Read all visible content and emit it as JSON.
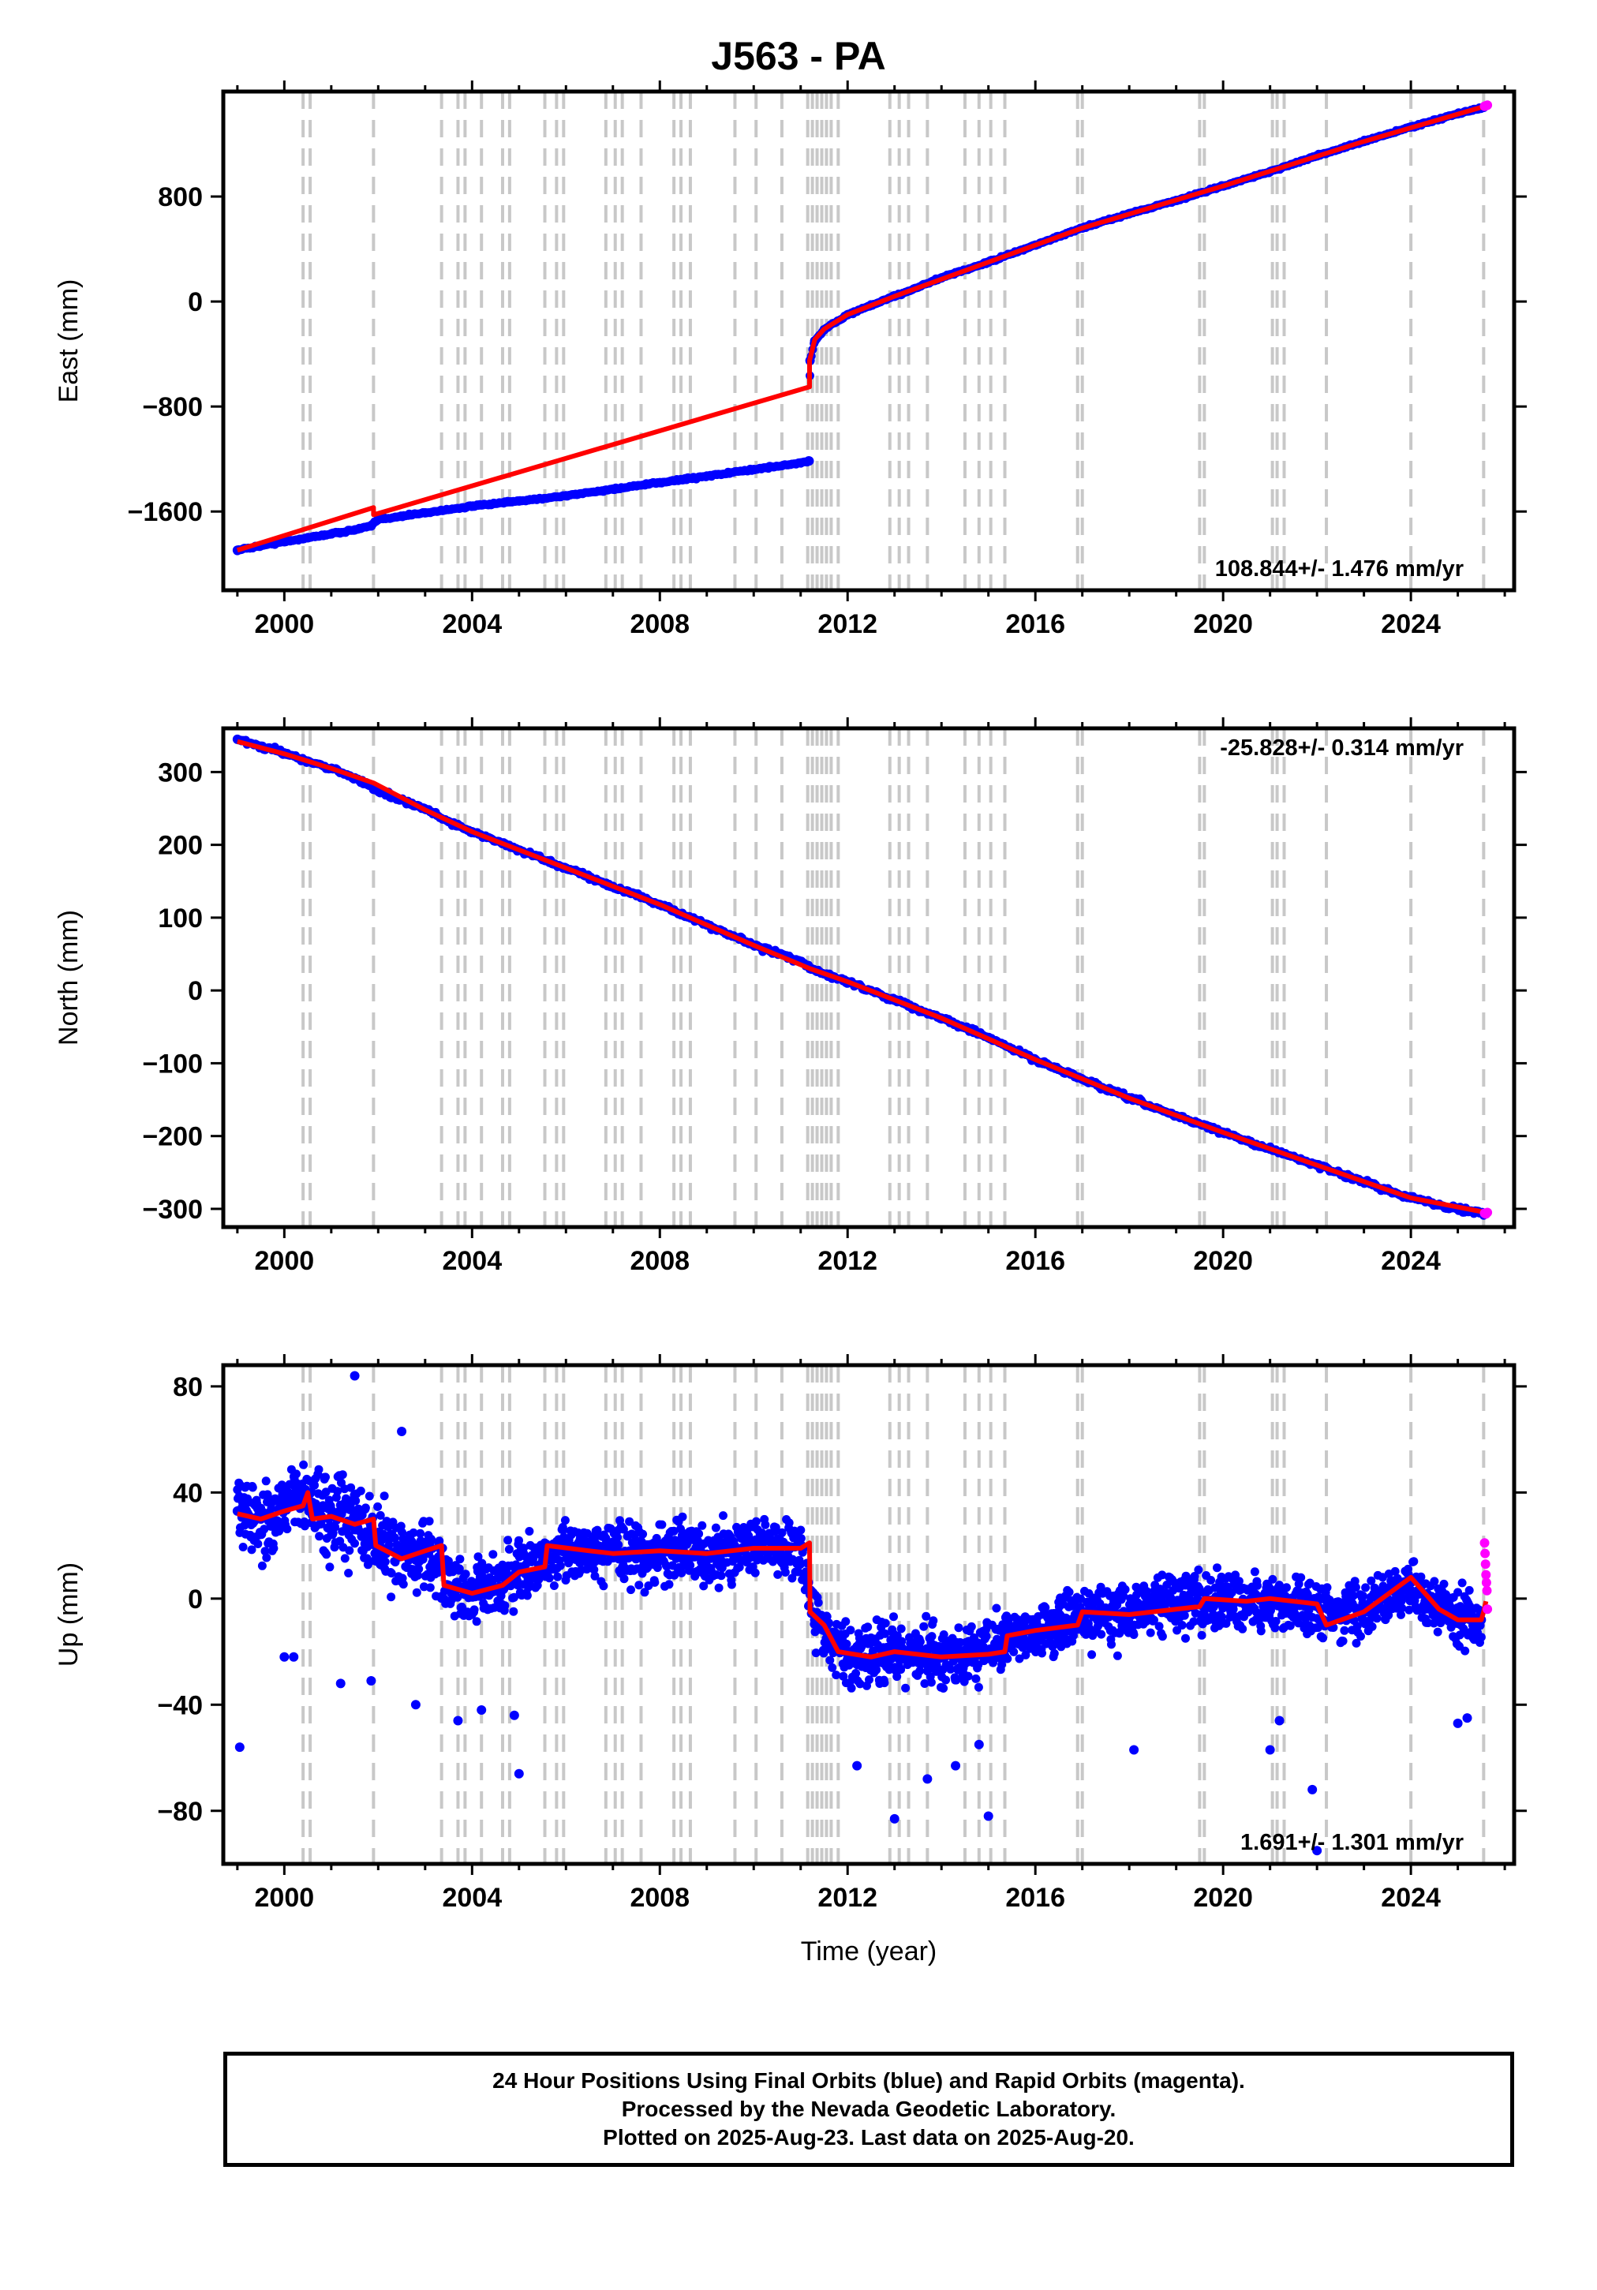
{
  "title": "J563 - PA",
  "footer": {
    "line1": "24 Hour Positions Using Final Orbits (blue) and Rapid Orbits (magenta).",
    "line2": "Processed by the Nevada Geodetic Laboratory.",
    "line3": "Plotted on 2025-Aug-23. Last data on 2025-Aug-20."
  },
  "colors": {
    "final_orbits": "#0000ff",
    "rapid_orbits": "#ff00ff",
    "model_fit": "#ff0000",
    "event_lines": "#c8c8c8",
    "frame": "#000000"
  },
  "chart_data": [
    {
      "type": "scatter",
      "panel": "east",
      "title": "",
      "xlabel": "",
      "ylabel": "East (mm)",
      "xlim": [
        1998.7,
        2026.2
      ],
      "ylim": [
        -2200,
        1600
      ],
      "xticks": [
        2000,
        2004,
        2008,
        2012,
        2016,
        2020,
        2024
      ],
      "yticks": [
        -1600,
        -800,
        0,
        800
      ],
      "velocity_label": "108.844+/- 1.476 mm/yr",
      "velocity_label_position": "bottom-right",
      "grid": false,
      "event_lines": [
        2000.4,
        2000.55,
        2001.9,
        2003.35,
        2003.7,
        2003.85,
        2004.2,
        2004.65,
        2004.8,
        2005.55,
        2005.8,
        2005.95,
        2006.85,
        2007.05,
        2007.2,
        2007.6,
        2008.3,
        2008.45,
        2008.65,
        2009.6,
        2010.05,
        2010.6,
        2011.15,
        2011.25,
        2011.35,
        2011.45,
        2011.55,
        2011.65,
        2011.8,
        2012.9,
        2013.1,
        2013.3,
        2013.7,
        2014.5,
        2014.8,
        2015.05,
        2015.35,
        2016.9,
        2017.0,
        2019.5,
        2019.6,
        2021.05,
        2021.15,
        2021.3,
        2022.2,
        2024.0,
        2025.55
      ],
      "model_fit": {
        "x": [
          1999.0,
          2001.9,
          2001.9,
          2011.19,
          2011.19,
          2011.3,
          2011.5,
          2012.0,
          2013.0,
          2015.0,
          2017.0,
          2020.0,
          2023.0,
          2025.6
        ],
        "y": [
          -1895,
          -1570,
          -1625,
          -650,
          -450,
          -290,
          -210,
          -100,
          40,
          300,
          560,
          880,
          1220,
          1490
        ]
      },
      "final_orbits": {
        "x": [
          1999.0,
          1999.5,
          2000.0,
          2000.5,
          2001.0,
          2001.5,
          2001.85,
          2002.0,
          2003.0,
          2004.0,
          2005.0,
          2006.0,
          2007.0,
          2008.0,
          2009.0,
          2010.0,
          2011.0,
          2011.18,
          2011.2,
          2011.3,
          2011.5,
          2012.0,
          2013.0,
          2014.0,
          2015.0,
          2016.0,
          2017.0,
          2018.0,
          2019.0,
          2020.0,
          2021.0,
          2022.0,
          2023.0,
          2024.0,
          2025.0,
          2025.55
        ],
        "y": [
          -1895,
          -1860,
          -1830,
          -1800,
          -1770,
          -1740,
          -1710,
          -1660,
          -1610,
          -1560,
          -1520,
          -1480,
          -1430,
          -1380,
          -1330,
          -1280,
          -1230,
          -1215,
          -450,
          -300,
          -215,
          -100,
          40,
          180,
          300,
          430,
          560,
          670,
          770,
          880,
          990,
          1110,
          1220,
          1330,
          1430,
          1480
        ]
      },
      "rapid_orbits": {
        "x": [
          2025.57,
          2025.6,
          2025.63
        ],
        "y": [
          1488,
          1492,
          1496
        ]
      }
    },
    {
      "type": "scatter",
      "panel": "north",
      "title": "",
      "xlabel": "",
      "ylabel": "North (mm)",
      "xlim": [
        1998.7,
        2026.2
      ],
      "ylim": [
        -325,
        360
      ],
      "xticks": [
        2000,
        2004,
        2008,
        2012,
        2016,
        2020,
        2024
      ],
      "yticks": [
        -300,
        -200,
        -100,
        0,
        100,
        200,
        300
      ],
      "velocity_label": "-25.828+/- 0.314 mm/yr",
      "velocity_label_position": "top-right",
      "grid": false,
      "event_lines": [
        2000.4,
        2000.55,
        2001.9,
        2003.35,
        2003.7,
        2003.85,
        2004.2,
        2004.65,
        2004.8,
        2005.55,
        2005.8,
        2005.95,
        2006.85,
        2007.05,
        2007.2,
        2007.6,
        2008.3,
        2008.45,
        2008.65,
        2009.6,
        2010.05,
        2010.6,
        2011.15,
        2011.25,
        2011.35,
        2011.45,
        2011.55,
        2011.65,
        2011.8,
        2012.9,
        2013.1,
        2013.3,
        2013.7,
        2014.5,
        2014.8,
        2015.05,
        2015.35,
        2016.9,
        2017.0,
        2019.5,
        2019.6,
        2021.05,
        2021.15,
        2021.3,
        2022.2,
        2024.0,
        2025.55
      ],
      "model_fit": {
        "x": [
          1999.0,
          2000.0,
          2001.0,
          2001.9,
          2003.0,
          2004.0,
          2006.0,
          2008.0,
          2010.0,
          2011.2,
          2012.0,
          2014.0,
          2016.0,
          2018.0,
          2020.0,
          2022.0,
          2024.0,
          2025.6
        ],
        "y": [
          342,
          325,
          305,
          285,
          248,
          218,
          168,
          118,
          62,
          30,
          12,
          -38,
          -95,
          -148,
          -195,
          -240,
          -285,
          -305
        ]
      },
      "final_orbits": {
        "x": [
          1999.0,
          1999.5,
          2000.0,
          2000.5,
          2001.0,
          2001.5,
          2002.0,
          2002.5,
          2003.0,
          2003.5,
          2004.0,
          2005.0,
          2006.0,
          2007.0,
          2008.0,
          2009.0,
          2010.0,
          2011.0,
          2011.2,
          2012.0,
          2013.0,
          2014.0,
          2015.0,
          2016.0,
          2017.0,
          2018.0,
          2019.0,
          2020.0,
          2021.0,
          2022.0,
          2023.0,
          2024.0,
          2025.0,
          2025.55
        ],
        "y": [
          345,
          335,
          326,
          315,
          305,
          292,
          274,
          262,
          249,
          232,
          218,
          193,
          168,
          143,
          118,
          90,
          62,
          40,
          30,
          12,
          -13,
          -38,
          -65,
          -95,
          -122,
          -148,
          -172,
          -195,
          -218,
          -240,
          -263,
          -285,
          -300,
          -306
        ]
      },
      "rapid_orbits": {
        "x": [
          2025.57,
          2025.6,
          2025.63
        ],
        "y": [
          -306,
          -307,
          -305
        ]
      }
    },
    {
      "type": "scatter",
      "panel": "up",
      "title": "",
      "xlabel": "Time (year)",
      "ylabel": "Up (mm)",
      "xlim": [
        1998.7,
        2026.2
      ],
      "ylim": [
        -100,
        88
      ],
      "xticks": [
        2000,
        2004,
        2008,
        2012,
        2016,
        2020,
        2024
      ],
      "yticks": [
        -80,
        -40,
        0,
        40,
        80
      ],
      "velocity_label": "1.691+/- 1.301 mm/yr",
      "velocity_label_position": "bottom-right",
      "grid": false,
      "event_lines": [
        2000.4,
        2000.55,
        2001.9,
        2003.35,
        2003.7,
        2003.85,
        2004.2,
        2004.65,
        2004.8,
        2005.55,
        2005.8,
        2005.95,
        2006.85,
        2007.05,
        2007.2,
        2007.6,
        2008.3,
        2008.45,
        2008.65,
        2009.6,
        2010.05,
        2010.6,
        2011.15,
        2011.25,
        2011.35,
        2011.45,
        2011.55,
        2011.65,
        2011.8,
        2012.9,
        2013.1,
        2013.3,
        2013.7,
        2014.5,
        2014.8,
        2015.05,
        2015.35,
        2016.9,
        2017.0,
        2019.5,
        2019.6,
        2021.05,
        2021.15,
        2021.3,
        2022.2,
        2024.0,
        2025.55
      ],
      "model_fit": {
        "x": [
          1999.0,
          1999.5,
          2000.0,
          2000.4,
          2000.5,
          2000.6,
          2001.0,
          2001.5,
          2001.9,
          2001.95,
          2002.5,
          2003.0,
          2003.35,
          2003.4,
          2004.0,
          2004.65,
          2005.0,
          2005.55,
          2005.6,
          2006.5,
          2007.0,
          2008.0,
          2009.0,
          2010.0,
          2011.0,
          2011.19,
          2011.2,
          2011.5,
          2011.8,
          2012.5,
          2013.0,
          2014.0,
          2015.0,
          2015.35,
          2015.4,
          2016.0,
          2016.9,
          2017.0,
          2018.0,
          2019.5,
          2019.6,
          2020.5,
          2021.0,
          2022.0,
          2022.2,
          2023.0,
          2024.0,
          2024.3,
          2024.6,
          2025.0,
          2025.5,
          2025.55,
          2025.6
        ],
        "y": [
          32,
          30,
          33,
          35,
          40,
          30,
          31,
          28,
          30,
          20,
          15,
          18,
          20,
          5,
          2,
          5,
          10,
          12,
          20,
          18,
          17,
          18,
          17,
          19,
          19,
          21,
          -5,
          -10,
          -20,
          -22,
          -20,
          -22,
          -21,
          -20,
          -14,
          -12,
          -10,
          -5,
          -6,
          -3,
          0,
          -1,
          0,
          -2,
          -10,
          -5,
          8,
          2,
          -4,
          -8,
          -8,
          -5,
          -1
        ]
      },
      "final_orbits": {
        "x": [
          1999.0,
          1999.5,
          2000.0,
          2000.5,
          2001.0,
          2001.5,
          2002.0,
          2002.5,
          2003.0,
          2003.5,
          2004.0,
          2004.5,
          2005.0,
          2005.5,
          2006.0,
          2006.5,
          2007.0,
          2007.5,
          2008.0,
          2008.5,
          2009.0,
          2009.5,
          2010.0,
          2010.5,
          2011.0,
          2011.3,
          2011.6,
          2012.0,
          2012.5,
          2013.0,
          2013.5,
          2014.0,
          2014.5,
          2015.0,
          2015.5,
          2016.0,
          2016.5,
          2017.0,
          2017.5,
          2018.0,
          2018.5,
          2019.0,
          2019.5,
          2020.0,
          2020.5,
          2021.0,
          2021.5,
          2022.0,
          2022.5,
          2023.0,
          2023.5,
          2024.0,
          2024.5,
          2025.0,
          2025.5
        ],
        "y": [
          33,
          30,
          34,
          38,
          31,
          29,
          22,
          17,
          19,
          5,
          2,
          3,
          10,
          14,
          19,
          18,
          18,
          17,
          18,
          18,
          16,
          18,
          19,
          19,
          20,
          -8,
          -15,
          -21,
          -22,
          -20,
          -21,
          -22,
          -21,
          -20,
          -14,
          -11,
          -9,
          -5,
          -6,
          -5,
          -3,
          -2,
          -1,
          0,
          -1,
          -1,
          -2,
          -3,
          -8,
          -5,
          0,
          6,
          -3,
          -7,
          -8
        ],
        "outliers": {
          "x": [
            1999.05,
            2000.0,
            2000.2,
            2001.2,
            2001.85,
            2002.8,
            2003.7,
            2004.2,
            2004.9,
            2005.0,
            2012.2,
            2013.0,
            2013.7,
            2014.3,
            2014.8,
            2015.0,
            2018.1,
            2021.0,
            2021.2,
            2021.9,
            2022.0,
            2025.0,
            2025.2,
            2001.5,
            2002.5
          ],
          "y": [
            -56,
            -22,
            -22,
            -32,
            -31,
            -40,
            -46,
            -42,
            -44,
            -66,
            -63,
            -83,
            -68,
            -63,
            -55,
            -82,
            -57,
            -57,
            -46,
            -72,
            -95,
            -47,
            -45,
            84,
            63
          ]
        }
      },
      "rapid_orbits": {
        "x": [
          2025.57,
          2025.58,
          2025.59,
          2025.6,
          2025.61,
          2025.62,
          2025.63
        ],
        "y": [
          21,
          17,
          13,
          9,
          6,
          3,
          -4
        ]
      }
    }
  ]
}
